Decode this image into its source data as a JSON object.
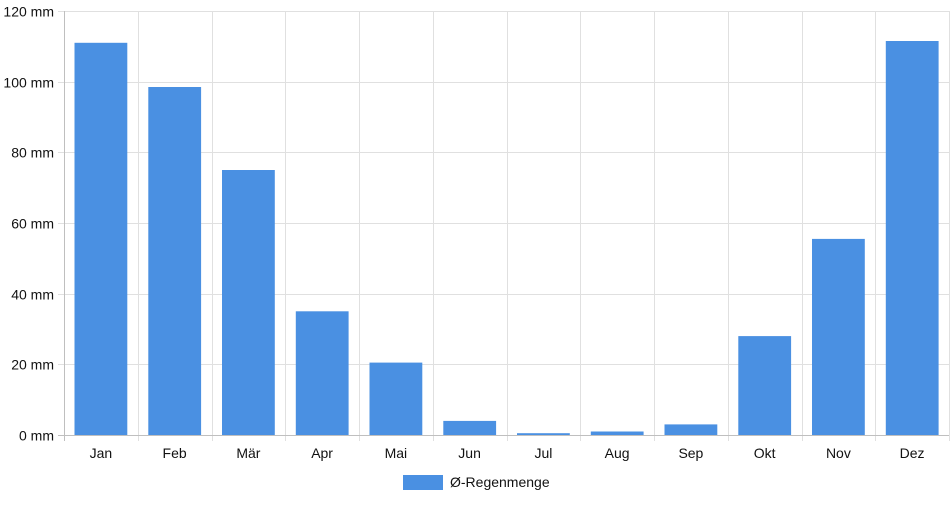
{
  "chart_data": {
    "type": "bar",
    "categories": [
      "Jan",
      "Feb",
      "Mär",
      "Apr",
      "Mai",
      "Jun",
      "Jul",
      "Aug",
      "Sep",
      "Okt",
      "Nov",
      "Dez"
    ],
    "series": [
      {
        "name": "Ø-Regenmenge",
        "values": [
          111,
          98.5,
          75,
          35,
          20.5,
          4,
          0.5,
          1,
          3,
          28,
          55.5,
          111.5
        ],
        "color": "#4a90e2"
      }
    ],
    "y_tick_labels": [
      "0 mm",
      "20 mm",
      "40 mm",
      "60 mm",
      "80 mm",
      "100 mm",
      "120 mm"
    ],
    "y_ticks": [
      0,
      20,
      40,
      60,
      80,
      100,
      120
    ],
    "ylim": [
      0,
      120
    ],
    "grid": true,
    "legend_position": "bottom-center",
    "colors": {
      "grid": "#e0e0e0",
      "axis": "#bfbfbf",
      "bar": "#4a90e2",
      "text": "#111111"
    }
  }
}
